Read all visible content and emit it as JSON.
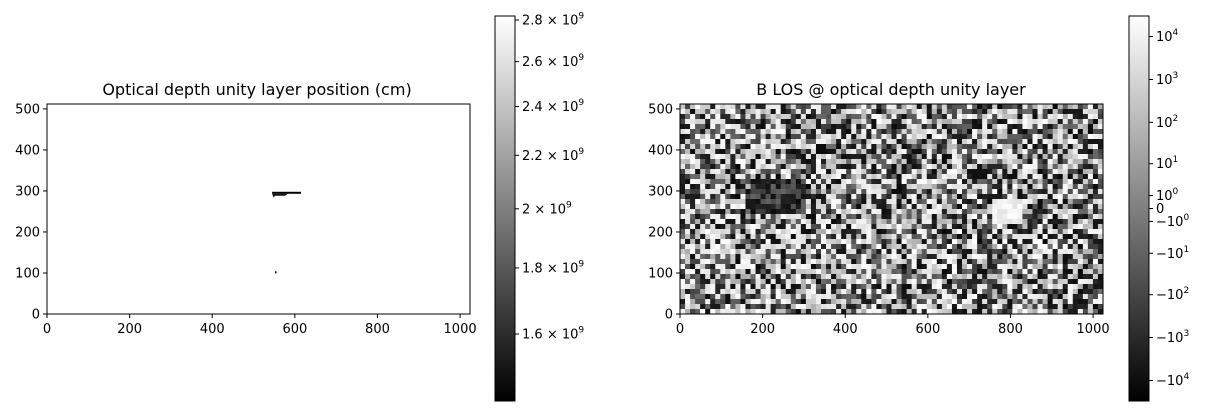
{
  "chart_data": [
    {
      "type": "heatmap",
      "title": "Optical depth unity layer position (cm)",
      "xlabel": "",
      "ylabel": "",
      "xlim": [
        0,
        1024
      ],
      "ylim": [
        0,
        512
      ],
      "xticks": [
        "0",
        "200",
        "400",
        "600",
        "800",
        "1000"
      ],
      "yticks": [
        "0",
        "100",
        "200",
        "300",
        "400",
        "500"
      ],
      "colormap": "gray",
      "colorbar": {
        "scale": "log",
        "range": [
          1420000000.0,
          2820000000.0
        ],
        "ticks": [
          {
            "value": 1600000000.0,
            "mantissa": "1.6",
            "base": "10",
            "exp": "9"
          },
          {
            "value": 1800000000.0,
            "mantissa": "1.8",
            "base": "10",
            "exp": "9"
          },
          {
            "value": 2000000000.0,
            "mantissa": "2",
            "base": "10",
            "exp": "9"
          },
          {
            "value": 2200000000.0,
            "mantissa": "2.2",
            "base": "10",
            "exp": "9"
          },
          {
            "value": 2400000000.0,
            "mantissa": "2.4",
            "base": "10",
            "exp": "9"
          },
          {
            "value": 2600000000.0,
            "mantissa": "2.6",
            "base": "10",
            "exp": "9"
          },
          {
            "value": 2800000000.0,
            "mantissa": "2.8",
            "base": "10",
            "exp": "9"
          }
        ]
      },
      "features": [
        {
          "kind": "dark_streak",
          "x": [
            545,
            615
          ],
          "y": [
            287,
            298
          ]
        },
        {
          "kind": "dark_dot",
          "x": [
            552,
            554
          ],
          "y": [
            101,
            104
          ]
        }
      ],
      "background": "saturated white (≈2.8e9)"
    },
    {
      "type": "heatmap",
      "title": "B LOS @ optical depth unity layer",
      "xlabel": "",
      "ylabel": "",
      "xlim": [
        0,
        1024
      ],
      "ylim": [
        0,
        512
      ],
      "xticks": [
        "0",
        "200",
        "400",
        "600",
        "800",
        "1000"
      ],
      "yticks": [
        "0",
        "100",
        "200",
        "300",
        "400",
        "500"
      ],
      "colormap": "gray",
      "colorbar": {
        "scale": "symlog",
        "range": [
          -30000,
          30000
        ],
        "ticks": [
          {
            "value": 10000,
            "mantissa": "",
            "base": "10",
            "exp": "4"
          },
          {
            "value": 1000,
            "mantissa": "",
            "base": "10",
            "exp": "3"
          },
          {
            "value": 100,
            "mantissa": "",
            "base": "10",
            "exp": "2"
          },
          {
            "value": 10,
            "mantissa": "",
            "base": "10",
            "exp": "1"
          },
          {
            "value": 1,
            "mantissa": "",
            "base": "10",
            "exp": "0"
          },
          {
            "value": 0,
            "mantissa": "0",
            "base": "",
            "exp": ""
          },
          {
            "value": -1,
            "mantissa": "−",
            "base": "10",
            "exp": "0"
          },
          {
            "value": -10,
            "mantissa": "−",
            "base": "10",
            "exp": "1"
          },
          {
            "value": -100,
            "mantissa": "−",
            "base": "10",
            "exp": "2"
          },
          {
            "value": -1000,
            "mantissa": "−",
            "base": "10",
            "exp": "3"
          },
          {
            "value": -10000,
            "mantissa": "−",
            "base": "10",
            "exp": "4"
          }
        ]
      },
      "features": [
        {
          "kind": "bright_patch",
          "x": [
            760,
            830
          ],
          "y": [
            220,
            280
          ]
        },
        {
          "kind": "dark_patch",
          "x": [
            170,
            300
          ],
          "y": [
            240,
            330
          ]
        }
      ],
      "background": "granular mixed-sign field"
    }
  ]
}
